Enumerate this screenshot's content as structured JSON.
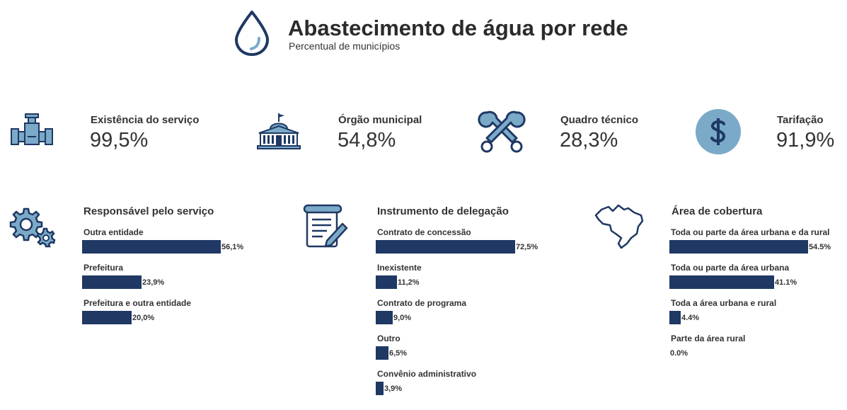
{
  "header": {
    "title": "Abastecimento de água por rede",
    "subtitle": "Percentual de municípios"
  },
  "kpis": [
    {
      "label": "Existência do serviço",
      "value": "99,5%",
      "icon": "pipe-valve-icon"
    },
    {
      "label": "Órgão municipal",
      "value": "54,8%",
      "icon": "city-hall-icon"
    },
    {
      "label": "Quadro técnico",
      "value": "28,3%",
      "icon": "wrenches-icon"
    },
    {
      "label": "Tarifação",
      "value": "91,9%",
      "icon": "dollar-coin-icon"
    }
  ],
  "colors": {
    "bar": "#1f3864",
    "icon_dark": "#1f3864",
    "icon_light": "#7aaac8"
  },
  "chart_data": [
    {
      "type": "bar",
      "orientation": "horizontal",
      "title": "Responsável pelo serviço",
      "icon": "gears-icon",
      "categories": [
        "Outra entidade",
        "Prefeitura",
        "Prefeitura e outra entidade"
      ],
      "values": [
        56.1,
        23.9,
        20.0
      ],
      "value_labels": [
        "56,1%",
        "23,9%",
        "20,0%"
      ],
      "xlim": [
        0,
        100
      ]
    },
    {
      "type": "bar",
      "orientation": "horizontal",
      "title": "Instrumento de delegação",
      "icon": "contract-document-icon",
      "categories": [
        "Contrato de concessão",
        "Inexistente",
        "Contrato de programa",
        "Outro",
        "Convênio administrativo"
      ],
      "values": [
        72.5,
        11.2,
        9.0,
        6.5,
        3.9
      ],
      "value_labels": [
        "72,5%",
        "11,2%",
        "9,0%",
        "6,5%",
        "3,9%"
      ],
      "xlim": [
        0,
        100
      ]
    },
    {
      "type": "bar",
      "orientation": "horizontal",
      "title": "Área de cobertura",
      "icon": "brazil-map-icon",
      "categories": [
        "Toda ou parte da área urbana e da rural",
        "Toda ou parte da área urbana",
        "Toda a área urbana e rural",
        "Parte da área rural"
      ],
      "values": [
        54.5,
        41.1,
        4.4,
        0.0
      ],
      "value_labels": [
        "54.5%",
        "41.1%",
        "4.4%",
        "0.0%"
      ],
      "xlim": [
        0,
        100
      ]
    }
  ]
}
